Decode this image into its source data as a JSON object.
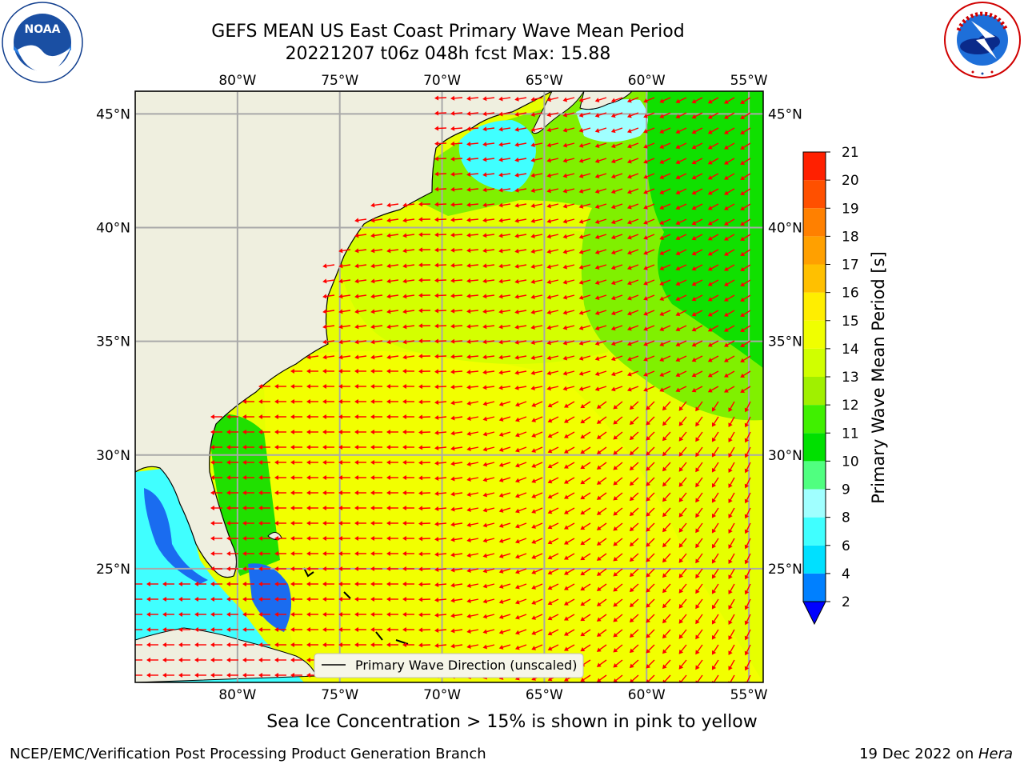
{
  "header": {
    "title_line1": "GEFS MEAN US East Coast Primary Wave Mean Period",
    "title_line2": "20221207 t06z 048h fcst   Max: 15.88"
  },
  "logos": {
    "noaa": {
      "text": "NOAA",
      "icon": "noaa-logo-icon",
      "ring_text": "NATIONAL OCEANIC AND ATMOSPHERIC ADMINISTRATION · U.S. DEPARTMENT OF COMMERCE"
    },
    "nws": {
      "icon": "nws-logo-icon",
      "ring_text": "NATIONAL WEATHER SERVICE"
    }
  },
  "map": {
    "lon_labels": [
      "80°W",
      "75°W",
      "70°W",
      "65°W",
      "60°W",
      "55°W"
    ],
    "lon_values": [
      -80,
      -75,
      -70,
      -65,
      -60,
      -55
    ],
    "lat_labels": [
      "45°N",
      "40°N",
      "35°N",
      "30°N",
      "25°N"
    ],
    "lat_values": [
      45,
      40,
      35,
      30,
      25
    ],
    "extent": {
      "lon_min": -85,
      "lon_max": -54.3,
      "lat_min": 20,
      "lat_max": 46
    },
    "legend_text": "Primary Wave Direction (unscaled)",
    "arrow_color": "#ff0000",
    "land_color": "#efefdf",
    "grid": true
  },
  "colorbar": {
    "label": "Primary Wave Mean Period [s]",
    "ticks": [
      "2",
      "4",
      "6",
      "8",
      "9",
      "10",
      "11",
      "12",
      "13",
      "14",
      "15",
      "16",
      "17",
      "18",
      "19",
      "20",
      "21"
    ],
    "colors": [
      "#0080ff",
      "#00e0ff",
      "#40ffff",
      "#a0ffff",
      "#50ff80",
      "#00e000",
      "#40f000",
      "#a0f000",
      "#d0ff00",
      "#f0ff00",
      "#ffee00",
      "#ffc000",
      "#ffa000",
      "#ff8000",
      "#ff5000",
      "#ff2000",
      "#ff0000"
    ],
    "under_color": "#0000ff"
  },
  "ice_note": "Sea Ice Concentration > 15% is shown in pink to yellow",
  "footer": {
    "left": "NCEP/EMC/Verification Post Processing Product Generation Branch",
    "right_prefix": "19 Dec 2022 on ",
    "right_machine": "Hera"
  }
}
